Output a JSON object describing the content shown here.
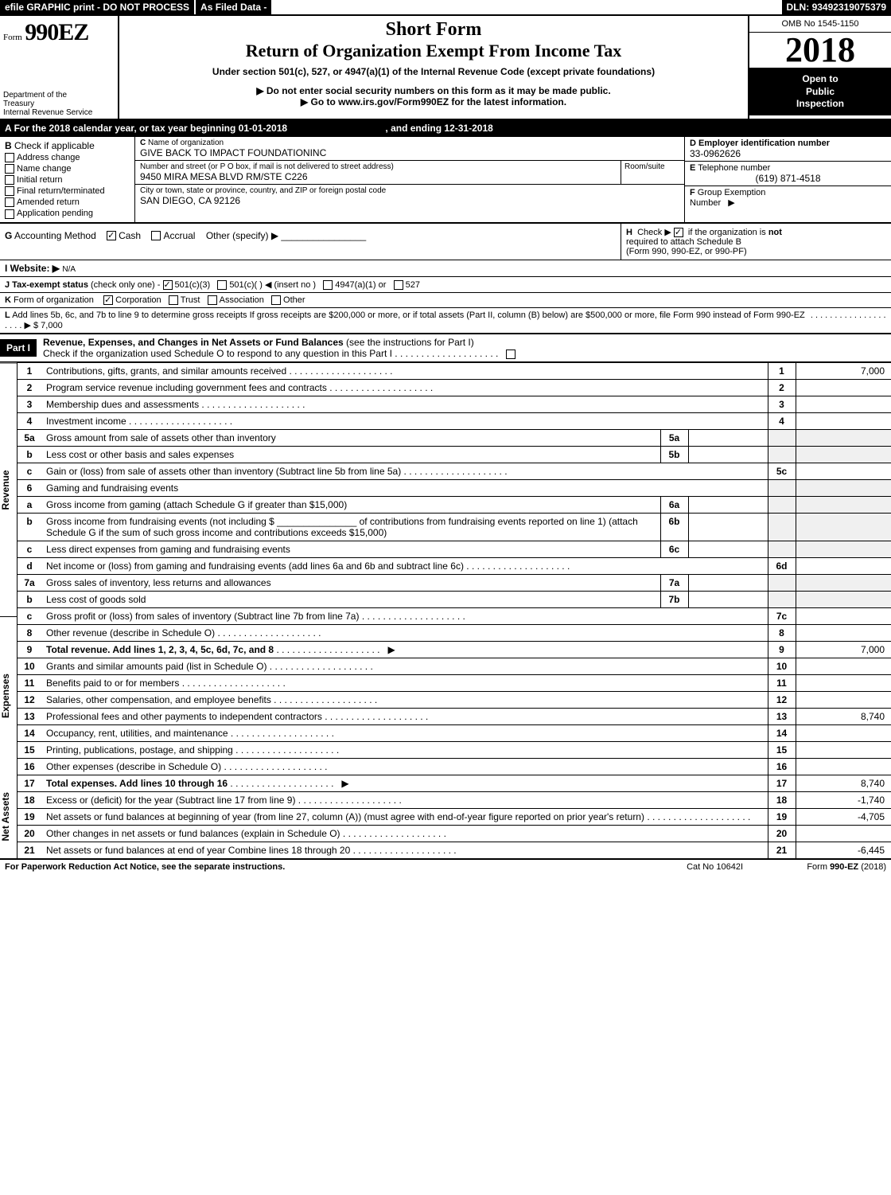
{
  "header": {
    "efile": "efile GRAPHIC print - DO NOT PROCESS",
    "as_filed": "As Filed Data -",
    "dln_label": "DLN:",
    "dln": "93492319075379",
    "omb_label": "OMB No",
    "omb": "1545-1150",
    "form_label": "Form",
    "form_num": "990EZ",
    "year": "2018",
    "short_form": "Short Form",
    "title": "Return of Organization Exempt From Income Tax",
    "subtitle": "Under section 501(c), 527, or 4947(a)(1) of the Internal Revenue Code (except private foundations)",
    "warn": "▶ Do not enter social security numbers on this form as it may be made public.",
    "goto": "▶ Go to www.irs.gov/Form990EZ for the latest information.",
    "dept1": "Department of the",
    "dept2": "Treasury",
    "dept3": "Internal Revenue Service",
    "open": "Open to",
    "public": "Public",
    "inspection": "Inspection"
  },
  "sectionA": {
    "text": "For the 2018 calendar year, or tax year beginning 01-01-2018",
    "ending": ", and ending 12-31-2018"
  },
  "sectionB": {
    "label": "B",
    "check_label": "Check if applicable",
    "items": [
      "Address change",
      "Name change",
      "Initial return",
      "Final return/terminated",
      "Amended return",
      "Application pending"
    ]
  },
  "sectionC": {
    "label": "C",
    "name_label": "Name of organization",
    "name": "GIVE BACK TO IMPACT FOUNDATIONINC",
    "addr_label": "Number and street (or P O box, if mail is not delivered to street address)",
    "room_label": "Room/suite",
    "addr": "9450 MIRA MESA BLVD RM/STE C226",
    "city_label": "City or town, state or province, country, and ZIP or foreign postal code",
    "city": "SAN DIEGO, CA  92126"
  },
  "sectionD": {
    "label": "D",
    "text": "Employer identification number",
    "val": "33-0962626"
  },
  "sectionE": {
    "label": "E",
    "text": "Telephone number",
    "val": "(619) 871-4518"
  },
  "sectionF": {
    "label": "F",
    "text": "Group Exemption",
    "text2": "Number",
    "arrow": "▶"
  },
  "sectionG": {
    "label": "G",
    "text": "Accounting Method",
    "cash": "Cash",
    "accrual": "Accrual",
    "other": "Other (specify) ▶"
  },
  "sectionH": {
    "label": "H",
    "text1": "Check ▶",
    "text2": "if the organization is",
    "not": "not",
    "text3": "required to attach Schedule B",
    "text4": "(Form 990, 990-EZ, or 990-PF)"
  },
  "sectionI": {
    "label": "I Website: ▶",
    "val": "N/A"
  },
  "sectionJ": {
    "label": "J Tax-exempt status",
    "paren": "(check only one) -",
    "opt1": "501(c)(3)",
    "opt2": "501(c)( )",
    "insert": "◀ (insert no )",
    "opt3": "4947(a)(1) or",
    "opt4": "527"
  },
  "sectionK": {
    "label": "K",
    "text": "Form of organization",
    "opts": [
      "Corporation",
      "Trust",
      "Association",
      "Other"
    ]
  },
  "sectionL": {
    "label": "L",
    "text": "Add lines 5b, 6c, and 7b to line 9 to determine gross receipts  If gross receipts are $200,000 or more, or if total assets (Part II, column (B) below) are $500,000 or more, file Form 990 instead of Form 990-EZ",
    "arrow": "▶ $",
    "val": "7,000"
  },
  "part1": {
    "label": "Part I",
    "title": "Revenue, Expenses, and Changes in Net Assets or Fund Balances",
    "subtitle": "(see the instructions for Part I)",
    "checkline": "Check if the organization used Schedule O to respond to any question in this Part I"
  },
  "sides": [
    "Revenue",
    "Expenses",
    "Net Assets"
  ],
  "lines": [
    {
      "n": "1",
      "d": "Contributions, gifts, grants, and similar amounts received",
      "box": "1",
      "amt": "7,000"
    },
    {
      "n": "2",
      "d": "Program service revenue including government fees and contracts",
      "box": "2",
      "amt": ""
    },
    {
      "n": "3",
      "d": "Membership dues and assessments",
      "box": "3",
      "amt": ""
    },
    {
      "n": "4",
      "d": "Investment income",
      "box": "4",
      "amt": ""
    },
    {
      "n": "5a",
      "d": "Gross amount from sale of assets other than inventory",
      "ibox": "5a"
    },
    {
      "n": "b",
      "d": "Less  cost or other basis and sales expenses",
      "ibox": "5b"
    },
    {
      "n": "c",
      "d": "Gain or (loss) from sale of assets other than inventory (Subtract line 5b from line 5a)",
      "box": "5c",
      "amt": ""
    },
    {
      "n": "6",
      "d": "Gaming and fundraising events"
    },
    {
      "n": "a",
      "d": "Gross income from gaming (attach Schedule G if greater than $15,000)",
      "ibox": "6a"
    },
    {
      "n": "b",
      "d": "Gross income from fundraising events (not including $ _______________ of contributions from fundraising events reported on line 1) (attach Schedule G if the sum of such gross income and contributions exceeds $15,000)",
      "ibox": "6b"
    },
    {
      "n": "c",
      "d": "Less  direct expenses from gaming and fundraising events",
      "ibox": "6c"
    },
    {
      "n": "d",
      "d": "Net income or (loss) from gaming and fundraising events (add lines 6a and 6b and subtract line 6c)",
      "box": "6d",
      "amt": ""
    },
    {
      "n": "7a",
      "d": "Gross sales of inventory, less returns and allowances",
      "ibox": "7a"
    },
    {
      "n": "b",
      "d": "Less  cost of goods sold",
      "ibox": "7b"
    },
    {
      "n": "c",
      "d": "Gross profit or (loss) from sales of inventory (Subtract line 7b from line 7a)",
      "box": "7c",
      "amt": ""
    },
    {
      "n": "8",
      "d": "Other revenue (describe in Schedule O)",
      "box": "8",
      "amt": ""
    },
    {
      "n": "9",
      "d": "Total revenue. Add lines 1, 2, 3, 4, 5c, 6d, 7c, and 8",
      "box": "9",
      "amt": "7,000",
      "bold": true,
      "arrow": true
    },
    {
      "n": "10",
      "d": "Grants and similar amounts paid (list in Schedule O)",
      "box": "10",
      "amt": ""
    },
    {
      "n": "11",
      "d": "Benefits paid to or for members",
      "box": "11",
      "amt": ""
    },
    {
      "n": "12",
      "d": "Salaries, other compensation, and employee benefits",
      "box": "12",
      "amt": ""
    },
    {
      "n": "13",
      "d": "Professional fees and other payments to independent contractors",
      "box": "13",
      "amt": "8,740"
    },
    {
      "n": "14",
      "d": "Occupancy, rent, utilities, and maintenance",
      "box": "14",
      "amt": ""
    },
    {
      "n": "15",
      "d": "Printing, publications, postage, and shipping",
      "box": "15",
      "amt": ""
    },
    {
      "n": "16",
      "d": "Other expenses (describe in Schedule O)",
      "box": "16",
      "amt": ""
    },
    {
      "n": "17",
      "d": "Total expenses. Add lines 10 through 16",
      "box": "17",
      "amt": "8,740",
      "bold": true,
      "arrow": true
    },
    {
      "n": "18",
      "d": "Excess or (deficit) for the year (Subtract line 17 from line 9)",
      "box": "18",
      "amt": "-1,740"
    },
    {
      "n": "19",
      "d": "Net assets or fund balances at beginning of year (from line 27, column (A)) (must agree with end-of-year figure reported on prior year's return)",
      "box": "19",
      "amt": "-4,705"
    },
    {
      "n": "20",
      "d": "Other changes in net assets or fund balances (explain in Schedule O)",
      "box": "20",
      "amt": ""
    },
    {
      "n": "21",
      "d": "Net assets or fund balances at end of year  Combine lines 18 through 20",
      "box": "21",
      "amt": "-6,445"
    }
  ],
  "footer": {
    "left": "For Paperwork Reduction Act Notice, see the separate instructions.",
    "mid": "Cat  No  10642I",
    "right": "Form 990-EZ (2018)"
  }
}
